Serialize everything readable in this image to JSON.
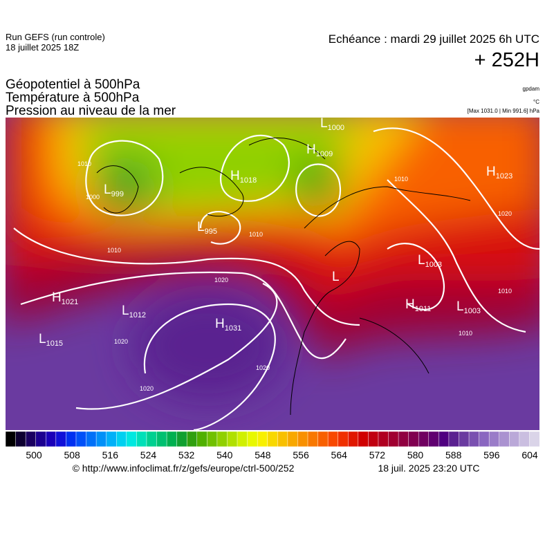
{
  "header": {
    "run": "Run GEFS (run controle)",
    "run_date": "18 juillet 2025 18Z",
    "valid": "Echéance : mardi 29 juillet 2025 6h UTC",
    "lead": "+ 252H",
    "fields": [
      "Géopotentiel à 500hPa",
      "Température à 500hPa",
      "Pression au niveau de la mer"
    ],
    "units": [
      "gpdam",
      "°C",
      "[Max 1031.0 | Min 991.6] hPa"
    ]
  },
  "map": {
    "pressure_centers": [
      {
        "letter": "L",
        "value": "1000"
      },
      {
        "letter": "H",
        "value": "1009"
      },
      {
        "letter": "H",
        "value": "1018"
      },
      {
        "letter": "L",
        "value": "999"
      },
      {
        "letter": "H",
        "value": "1023"
      },
      {
        "letter": "L",
        "value": "995"
      },
      {
        "letter": "H",
        "value": "1021"
      },
      {
        "letter": "L",
        "value": "1012"
      },
      {
        "letter": "H",
        "value": "1031"
      },
      {
        "letter": "L",
        "value": "1015"
      },
      {
        "letter": "L",
        "value": "1003"
      },
      {
        "letter": "H",
        "value": "1011"
      },
      {
        "letter": "L",
        "value": "1003"
      },
      {
        "letter": "L"
      }
    ],
    "isobar_labels": [
      "1010",
      "1000",
      "1010",
      "1020",
      "1020",
      "1020",
      "1020",
      "1010",
      "1020",
      "1010",
      "1010",
      "1010"
    ]
  },
  "colorbar": {
    "ticks": [
      500,
      508,
      516,
      524,
      532,
      540,
      548,
      556,
      564,
      572,
      580,
      588,
      596,
      604
    ],
    "colors": [
      "#000000",
      "#0d0030",
      "#1a0060",
      "#1c0090",
      "#1a00b8",
      "#1010d8",
      "#0030f0",
      "#0050f8",
      "#0070f8",
      "#0090f8",
      "#00b0f8",
      "#00d0f0",
      "#00e8e0",
      "#00e0b8",
      "#00d090",
      "#00c070",
      "#00b050",
      "#10a030",
      "#30a010",
      "#50b000",
      "#70c000",
      "#90d000",
      "#b0e000",
      "#d0f000",
      "#e8f800",
      "#f8f000",
      "#f8d800",
      "#f8c000",
      "#f8a800",
      "#f89000",
      "#f87800",
      "#f86000",
      "#f84800",
      "#f03000",
      "#e01800",
      "#d00000",
      "#c00010",
      "#b00020",
      "#a00030",
      "#900040",
      "#800050",
      "#700060",
      "#600070",
      "#500080",
      "#5a2090",
      "#6a3aa0",
      "#7a50b0",
      "#8a66c0",
      "#9a7cc8",
      "#aa92d0",
      "#baa8d8",
      "#cabee0",
      "#dad4e8"
    ]
  },
  "footer": {
    "source": "© http://www.infoclimat.fr/z/gefs/europe/ctrl-500/252",
    "generated": "18 juil. 2025 23:20 UTC"
  }
}
